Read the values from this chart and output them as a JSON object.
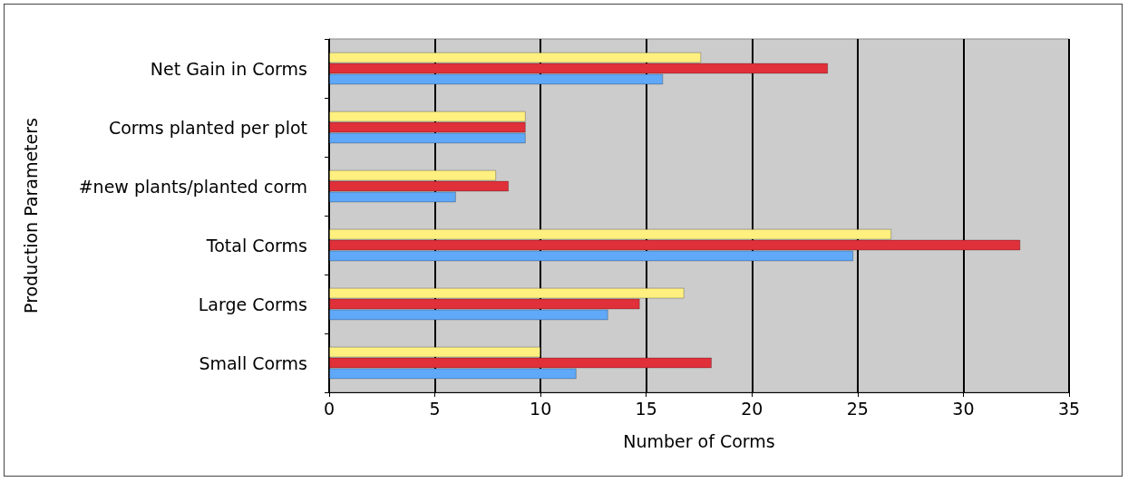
{
  "chart_data": {
    "type": "bar",
    "orientation": "horizontal",
    "xlabel": "Number of Corms",
    "ylabel": "Production Parameters",
    "categories": [
      "Net Gain in Corms",
      "Corms planted per plot",
      "#new plants/planted corm",
      "Total Corms",
      "Large Corms",
      "Small Corms"
    ],
    "series": [
      {
        "color": "#fff080",
        "values": [
          17.6,
          9.3,
          7.9,
          26.6,
          16.8,
          10.0
        ]
      },
      {
        "color": "#e0303a",
        "values": [
          23.6,
          9.3,
          8.5,
          32.7,
          14.7,
          18.1
        ]
      },
      {
        "color": "#60a8f8",
        "values": [
          15.8,
          9.3,
          6.0,
          24.8,
          13.2,
          11.7
        ]
      }
    ],
    "xlim": [
      0,
      35
    ],
    "xticks": [
      0,
      5,
      10,
      15,
      20,
      25,
      30,
      35
    ],
    "grid": "x"
  }
}
